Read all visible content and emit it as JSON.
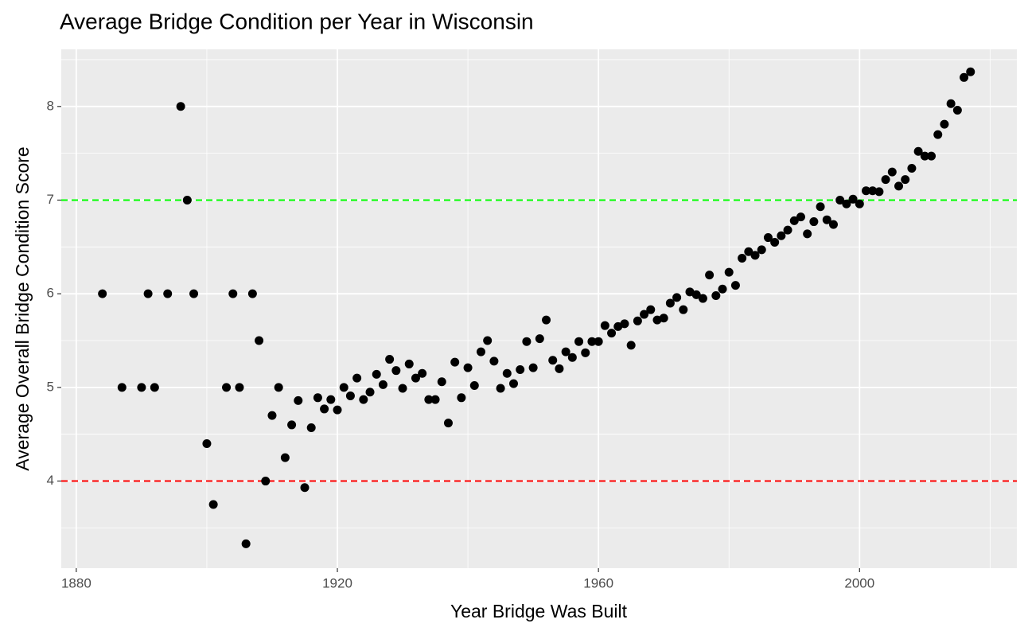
{
  "chart_data": {
    "type": "scatter",
    "title": "Average Bridge Condition per Year in Wisconsin",
    "x_label": "Year Bridge Was Built",
    "y_label": "Average Overall Bridge Condition Score",
    "xlim": [
      1877.7,
      2024.1
    ],
    "ylim": [
      3.07,
      8.61
    ],
    "xticks": [
      1880,
      1920,
      1960,
      2000
    ],
    "yticks": [
      4,
      5,
      6,
      7,
      8
    ],
    "grid": true,
    "point_color": "#000000",
    "hlines": [
      {
        "value": 7,
        "color": "#00ff00"
      },
      {
        "value": 4,
        "color": "#ff0000"
      }
    ],
    "x": [
      1884,
      1887,
      1890,
      1891,
      1892,
      1894,
      1896,
      1897,
      1898,
      1900,
      1901,
      1903,
      1904,
      1905,
      1906,
      1907,
      1908,
      1909,
      1910,
      1911,
      1912,
      1913,
      1914,
      1915,
      1916,
      1917,
      1918,
      1919,
      1920,
      1921,
      1922,
      1923,
      1924,
      1925,
      1926,
      1927,
      1928,
      1929,
      1930,
      1931,
      1932,
      1933,
      1934,
      1935,
      1936,
      1937,
      1938,
      1939,
      1940,
      1941,
      1942,
      1943,
      1944,
      1945,
      1946,
      1947,
      1948,
      1949,
      1950,
      1951,
      1952,
      1953,
      1954,
      1955,
      1956,
      1957,
      1958,
      1959,
      1960,
      1961,
      1962,
      1963,
      1964,
      1965,
      1966,
      1967,
      1968,
      1969,
      1970,
      1971,
      1972,
      1973,
      1974,
      1975,
      1976,
      1977,
      1978,
      1979,
      1980,
      1981,
      1982,
      1983,
      1984,
      1985,
      1986,
      1987,
      1988,
      1989,
      1990,
      1991,
      1992,
      1993,
      1994,
      1995,
      1996,
      1997,
      1998,
      1999,
      2000,
      2001,
      2002,
      2003,
      2004,
      2005,
      2006,
      2007,
      2008,
      2009,
      2010,
      2011,
      2012,
      2013,
      2014,
      2015,
      2016,
      2017
    ],
    "y": [
      6,
      5,
      5,
      6,
      5,
      6,
      8,
      7,
      6,
      4.4,
      3.75,
      5,
      6,
      5,
      3.33,
      6,
      5.5,
      4,
      4.7,
      5,
      4.25,
      4.6,
      4.86,
      3.93,
      4.57,
      4.89,
      4.77,
      4.87,
      4.76,
      5.0,
      4.91,
      5.1,
      4.87,
      4.95,
      5.14,
      5.03,
      5.3,
      5.18,
      4.99,
      5.25,
      5.1,
      5.15,
      4.87,
      4.87,
      5.06,
      4.62,
      5.27,
      4.89,
      5.21,
      5.02,
      5.38,
      5.5,
      5.28,
      4.99,
      5.15,
      5.04,
      5.19,
      5.49,
      5.21,
      5.52,
      5.72,
      5.29,
      5.2,
      5.38,
      5.32,
      5.49,
      5.37,
      5.49,
      5.49,
      5.66,
      5.58,
      5.65,
      5.68,
      5.45,
      5.71,
      5.78,
      5.83,
      5.72,
      5.74,
      5.9,
      5.96,
      5.83,
      6.02,
      5.99,
      5.95,
      6.2,
      5.98,
      6.05,
      6.23,
      6.09,
      6.38,
      6.45,
      6.41,
      6.47,
      6.6,
      6.55,
      6.62,
      6.68,
      6.78,
      6.82,
      6.64,
      6.77,
      6.93,
      6.79,
      6.74,
      7.0,
      6.96,
      7.01,
      6.96,
      7.1,
      7.1,
      7.09,
      7.22,
      7.3,
      7.15,
      7.22,
      7.34,
      7.52,
      7.47,
      7.47,
      7.7,
      7.81,
      8.03,
      7.96,
      8.31,
      8.37
    ]
  }
}
